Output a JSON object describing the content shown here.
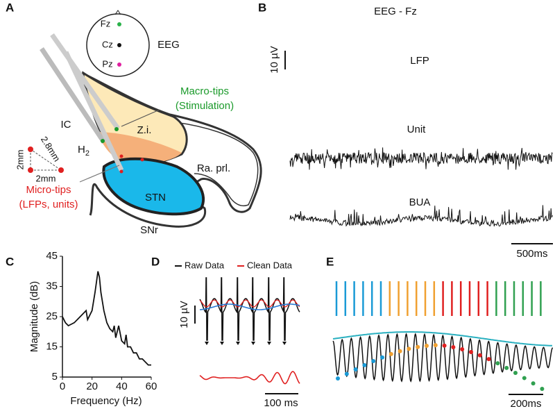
{
  "panel_labels": [
    "A",
    "B",
    "C",
    "D",
    "E"
  ],
  "panel_a": {
    "eeg_electrodes": [
      "Fz",
      "Cz",
      "Pz"
    ],
    "eeg_label": "EEG",
    "macro_tips": [
      "Macro-tips",
      "(Stimulation)"
    ],
    "micro_tips": [
      "Micro-tips",
      "(LFPs, units)"
    ],
    "regions": {
      "ic": "IC",
      "zi": "Z.i.",
      "h2": {
        "text": "H",
        "sub": "2"
      },
      "ra_prl": "Ra. prl.",
      "stn": "STN",
      "snr": "SNr"
    },
    "distances": [
      "2mm",
      "2.8mm",
      "2mm"
    ]
  },
  "panel_b": {
    "traces": [
      "EEG - Fz",
      "LFP",
      "Unit",
      "BUA"
    ],
    "v_scale": "10 µV",
    "t_scale": "500ms"
  },
  "panel_d": {
    "legend": [
      "Raw Data",
      "Clean Data"
    ],
    "v_scale": "10 µV",
    "t_scale": "100 ms"
  },
  "panel_e": {
    "t_scale": "200ms"
  },
  "chart_data": {
    "type": "line",
    "xlabel": "Frequency (Hz)",
    "ylabel": "Magnitude (dB)",
    "x": [
      0,
      2,
      4,
      6,
      8,
      10,
      12,
      14,
      16,
      17,
      18,
      20,
      22,
      24,
      25,
      26,
      28,
      30,
      32,
      34,
      35,
      36,
      38,
      40,
      42,
      43,
      44,
      46,
      48,
      50,
      52,
      54,
      56,
      58,
      60
    ],
    "values": [
      25,
      23,
      22,
      22.5,
      23,
      24,
      25,
      26,
      27,
      24,
      25,
      27,
      33,
      40,
      38,
      33,
      27,
      23,
      21,
      20,
      22,
      18,
      22,
      17,
      16,
      19,
      15,
      15,
      13,
      13,
      11,
      11,
      10,
      9,
      9
    ],
    "color": "#111111",
    "xlim": [
      0,
      60
    ],
    "xticks": [
      0,
      20,
      40,
      60
    ],
    "ylim": [
      5,
      45
    ],
    "yticks": [
      5,
      15,
      25,
      35,
      45
    ]
  }
}
